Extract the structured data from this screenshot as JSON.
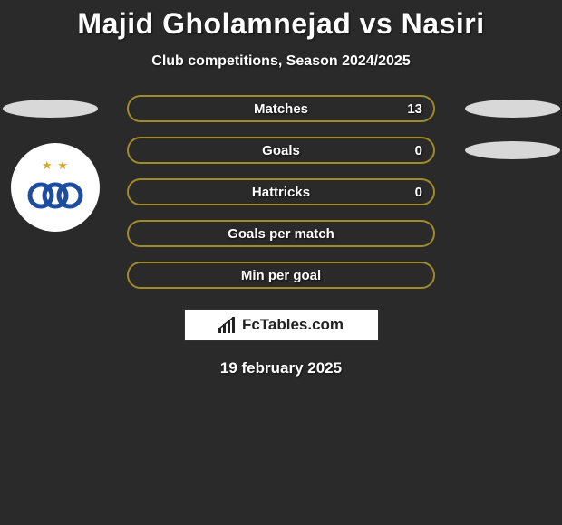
{
  "title": "Majid Gholamnejad vs Nasiri",
  "subtitle": "Club competitions, Season 2024/2025",
  "date": "19 february 2025",
  "footer_brand": "FcTables.com",
  "colors": {
    "background": "#2a2a2a",
    "bar_border": "#a08a2a",
    "bar_border_alt": "#8f7d2a",
    "ellipse": "#d8d8d8",
    "text": "#ffffff",
    "badge_bg": "#ffffff"
  },
  "rows": [
    {
      "label": "Matches",
      "right_value": "13",
      "has_left_ellipse": true,
      "has_right_ellipse": true
    },
    {
      "label": "Goals",
      "right_value": "0",
      "has_left_ellipse": false,
      "has_right_ellipse": true
    },
    {
      "label": "Hattricks",
      "right_value": "0",
      "has_left_ellipse": false,
      "has_right_ellipse": false
    },
    {
      "label": "Goals per match",
      "right_value": "",
      "has_left_ellipse": false,
      "has_right_ellipse": false
    },
    {
      "label": "Min per goal",
      "right_value": "",
      "has_left_ellipse": false,
      "has_right_ellipse": false
    }
  ],
  "club_badge": {
    "name": "esteghlal-club-badge",
    "ring_colors": [
      "#1e4da0",
      "#1e4da0",
      "#1e4da0"
    ],
    "star_color": "#d4a82a"
  }
}
